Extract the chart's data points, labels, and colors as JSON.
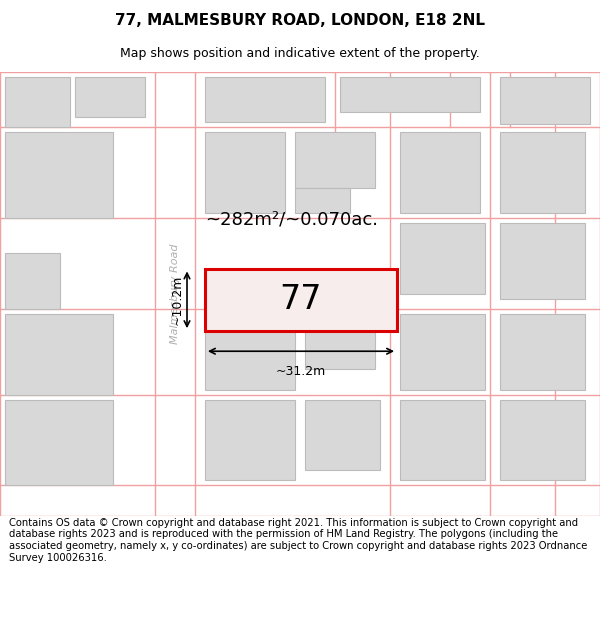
{
  "title": "77, MALMESBURY ROAD, LONDON, E18 2NL",
  "subtitle": "Map shows position and indicative extent of the property.",
  "footer": "Contains OS data © Crown copyright and database right 2021. This information is subject to Crown copyright and database rights 2023 and is reproduced with the permission of HM Land Registry. The polygons (including the associated geometry, namely x, y co-ordinates) are subject to Crown copyright and database rights 2023 Ordnance Survey 100026316.",
  "bg_color": "#ffffff",
  "grid_line_color": "#f0a0a0",
  "building_fill": "#d8d8d8",
  "building_edge": "#bbbbbb",
  "highlight_fill": "#f8eded",
  "highlight_edge": "#dd0000",
  "road_text_color": "#b0b0b0",
  "property_label": "77",
  "area_label": "~282m²/~0.070ac.",
  "width_label": "~31.2m",
  "height_label": "~10.2m",
  "title_fontsize": 11,
  "subtitle_fontsize": 9,
  "footer_fontsize": 7.2
}
